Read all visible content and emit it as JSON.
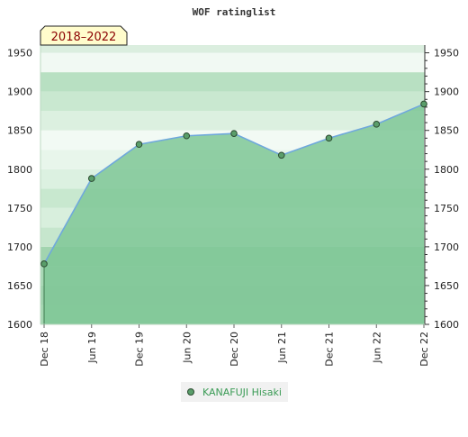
{
  "chart_data": {
    "type": "area",
    "title": "WOF ratinglist",
    "badge": "2018–2022",
    "categories": [
      "Dec 18",
      "Jun 19",
      "Dec 19",
      "Jun 20",
      "Dec 20",
      "Jun 21",
      "Dec 21",
      "Jun 22",
      "Dec 22"
    ],
    "series": [
      {
        "name": "KANAFUJI Hisaki",
        "values": [
          1678,
          1788,
          1832,
          1843,
          1846,
          1818,
          1840,
          1858,
          1884
        ]
      }
    ],
    "ylim": [
      1600,
      1960
    ],
    "yticks": [
      1600,
      1650,
      1700,
      1750,
      1800,
      1850,
      1900,
      1950
    ],
    "grid": true,
    "legend_position": "bottom",
    "colors": {
      "line": "#6fa8dc",
      "area": "#7fc796",
      "marker": "#5a9e6a",
      "marker_edge": "#2b4a30",
      "badge_bg": "#fffccc",
      "badge_text": "#8b0000"
    }
  }
}
